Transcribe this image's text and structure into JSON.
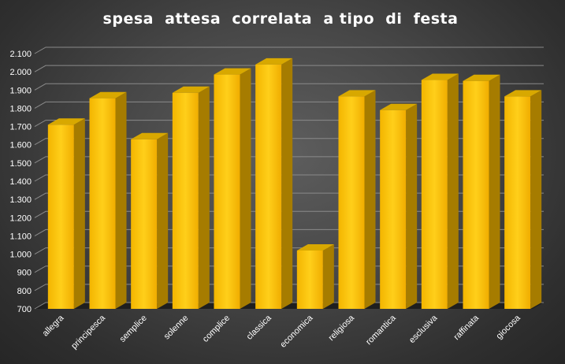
{
  "chart_data": {
    "type": "bar",
    "title": "spesa  attesa  correlata  a tipo  di  festa",
    "xlabel": "",
    "ylabel": "",
    "categories": [
      "allegra",
      "principesca",
      "semplice",
      "solenne",
      "complice",
      "classica",
      "economica",
      "religiosa",
      "romantica",
      "esclusiva",
      "raffinata",
      "giocosa"
    ],
    "values": [
      1710,
      1855,
      1630,
      1885,
      1985,
      2040,
      1020,
      1865,
      1790,
      1955,
      1950,
      1865
    ],
    "ylim": [
      700,
      2100
    ],
    "yticks": [
      "700",
      "800",
      "900",
      "1.000",
      "1.100",
      "1.200",
      "1.300",
      "1.400",
      "1.500",
      "1.600",
      "1.700",
      "1.800",
      "1.900",
      "2.000",
      "2.100"
    ],
    "grid": true,
    "legend": "none",
    "bar_style": "3d",
    "colors": {
      "bar_front_top": "#ffcc00",
      "bar_front_bottom": "#f5a800",
      "bar_side": "#a67c00",
      "bar_top": "#d8a800",
      "grid": "#8a8a8a",
      "text": "#ffffff"
    }
  }
}
